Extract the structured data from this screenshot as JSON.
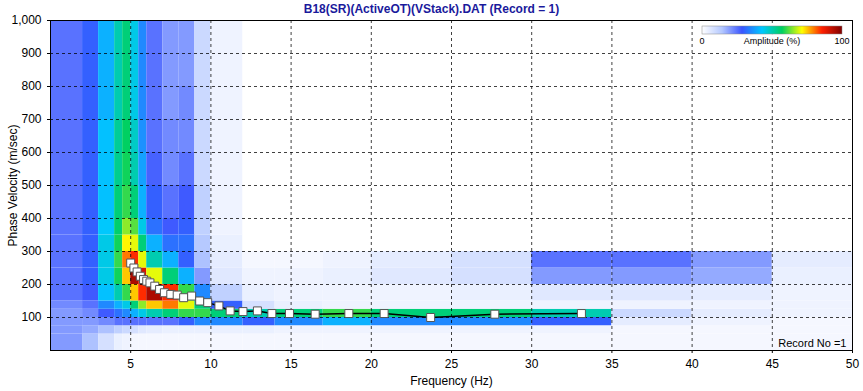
{
  "chart_data": {
    "type": "heatmap",
    "title": "B18(SR)(ActiveOT)(VStack).DAT (Record = 1)",
    "x_label": "Frequency (Hz)",
    "y_label": "Phase Velocity (m/sec)",
    "xlim": [
      0,
      50
    ],
    "xticks": [
      5,
      10,
      15,
      20,
      25,
      30,
      35,
      40,
      45,
      50
    ],
    "ylim": [
      0,
      1000
    ],
    "yticks": [
      100,
      200,
      300,
      400,
      500,
      600,
      700,
      800,
      900,
      1000
    ],
    "grid": true,
    "annotation": "Record No =1",
    "x": [
      5.0,
      5.2,
      5.4,
      5.6,
      5.8,
      6.0,
      6.2,
      6.5,
      6.8,
      7.1,
      7.5,
      7.9,
      8.3,
      8.8,
      9.3,
      9.8,
      10.5,
      11.2,
      12.0,
      12.9,
      13.8,
      14.9,
      16.5,
      18.6,
      20.8,
      23.7,
      27.7,
      33.1
    ],
    "values": [
      265,
      250,
      238,
      225,
      215,
      210,
      205,
      195,
      185,
      175,
      170,
      168,
      160,
      165,
      150,
      145,
      135,
      120,
      118,
      120,
      112,
      112,
      110,
      112,
      112,
      100,
      110,
      112
    ],
    "marker": "square",
    "line_style": "solid",
    "color": "#000000",
    "heatmap": {
      "x_edges": [
        0,
        2,
        3,
        4,
        4.5,
        5,
        5.5,
        6,
        7,
        8,
        9,
        10,
        12,
        14,
        17,
        20,
        25,
        30,
        35,
        40,
        45,
        50
      ],
      "y_edges": [
        0,
        50,
        75,
        100,
        125,
        150,
        200,
        250,
        300,
        350,
        400,
        500,
        600,
        700,
        800,
        900,
        1000
      ],
      "values": [
        [
          20,
          15,
          8,
          4,
          3,
          2,
          2,
          2,
          2,
          2,
          2,
          2,
          2,
          2,
          2,
          2,
          2,
          2,
          2,
          2,
          2
        ],
        [
          20,
          18,
          15,
          12,
          10,
          8,
          6,
          5,
          4,
          4,
          4,
          4,
          4,
          3,
          3,
          3,
          3,
          3,
          2,
          2,
          2
        ],
        [
          20,
          20,
          22,
          25,
          25,
          25,
          25,
          25,
          25,
          30,
          35,
          35,
          30,
          35,
          40,
          35,
          35,
          30,
          5,
          3,
          2
        ],
        [
          20,
          22,
          28,
          32,
          35,
          40,
          45,
          50,
          55,
          60,
          60,
          55,
          50,
          55,
          60,
          55,
          55,
          50,
          10,
          5,
          3
        ],
        [
          22,
          25,
          35,
          40,
          45,
          55,
          65,
          75,
          80,
          70,
          55,
          30,
          8,
          4,
          3,
          3,
          3,
          3,
          3,
          3,
          3
        ],
        [
          25,
          28,
          42,
          50,
          60,
          75,
          85,
          95,
          85,
          60,
          35,
          12,
          4,
          3,
          3,
          3,
          4,
          6,
          6,
          5,
          3
        ],
        [
          25,
          30,
          45,
          58,
          75,
          95,
          90,
          70,
          55,
          40,
          20,
          6,
          3,
          3,
          4,
          6,
          8,
          20,
          20,
          18,
          4
        ],
        [
          25,
          30,
          45,
          60,
          80,
          85,
          70,
          50,
          40,
          30,
          15,
          5,
          2,
          2,
          3,
          5,
          8,
          25,
          25,
          20,
          5
        ],
        [
          25,
          30,
          45,
          58,
          72,
          70,
          55,
          40,
          32,
          32,
          14,
          4,
          0,
          0,
          0,
          0,
          0,
          0,
          0,
          0,
          0
        ],
        [
          25,
          30,
          43,
          56,
          65,
          62,
          45,
          32,
          28,
          30,
          12,
          3,
          0,
          0,
          0,
          0,
          0,
          0,
          0,
          0,
          0
        ],
        [
          25,
          30,
          42,
          55,
          60,
          55,
          40,
          30,
          25,
          28,
          12,
          3,
          0,
          0,
          0,
          0,
          0,
          0,
          0,
          0,
          0
        ],
        [
          25,
          30,
          42,
          53,
          58,
          50,
          38,
          27,
          22,
          25,
          10,
          3,
          0,
          0,
          0,
          0,
          0,
          0,
          0,
          0,
          0
        ],
        [
          25,
          30,
          42,
          52,
          57,
          48,
          36,
          25,
          22,
          22,
          10,
          3,
          0,
          0,
          0,
          0,
          0,
          0,
          0,
          0,
          0
        ],
        [
          25,
          30,
          40,
          50,
          55,
          45,
          35,
          25,
          20,
          22,
          10,
          3,
          0,
          0,
          0,
          0,
          0,
          0,
          0,
          0,
          0
        ],
        [
          25,
          30,
          40,
          50,
          55,
          45,
          35,
          25,
          20,
          20,
          10,
          3,
          0,
          0,
          0,
          0,
          0,
          0,
          0,
          0,
          0
        ],
        [
          25,
          30,
          40,
          50,
          55,
          45,
          35,
          25,
          20,
          20,
          10,
          3,
          0,
          0,
          0,
          0,
          0,
          0,
          0,
          0,
          0
        ]
      ],
      "colorbar": {
        "label": "Amplitude (%)",
        "range": [
          0,
          100
        ],
        "ticks": [
          0,
          100
        ]
      }
    }
  }
}
